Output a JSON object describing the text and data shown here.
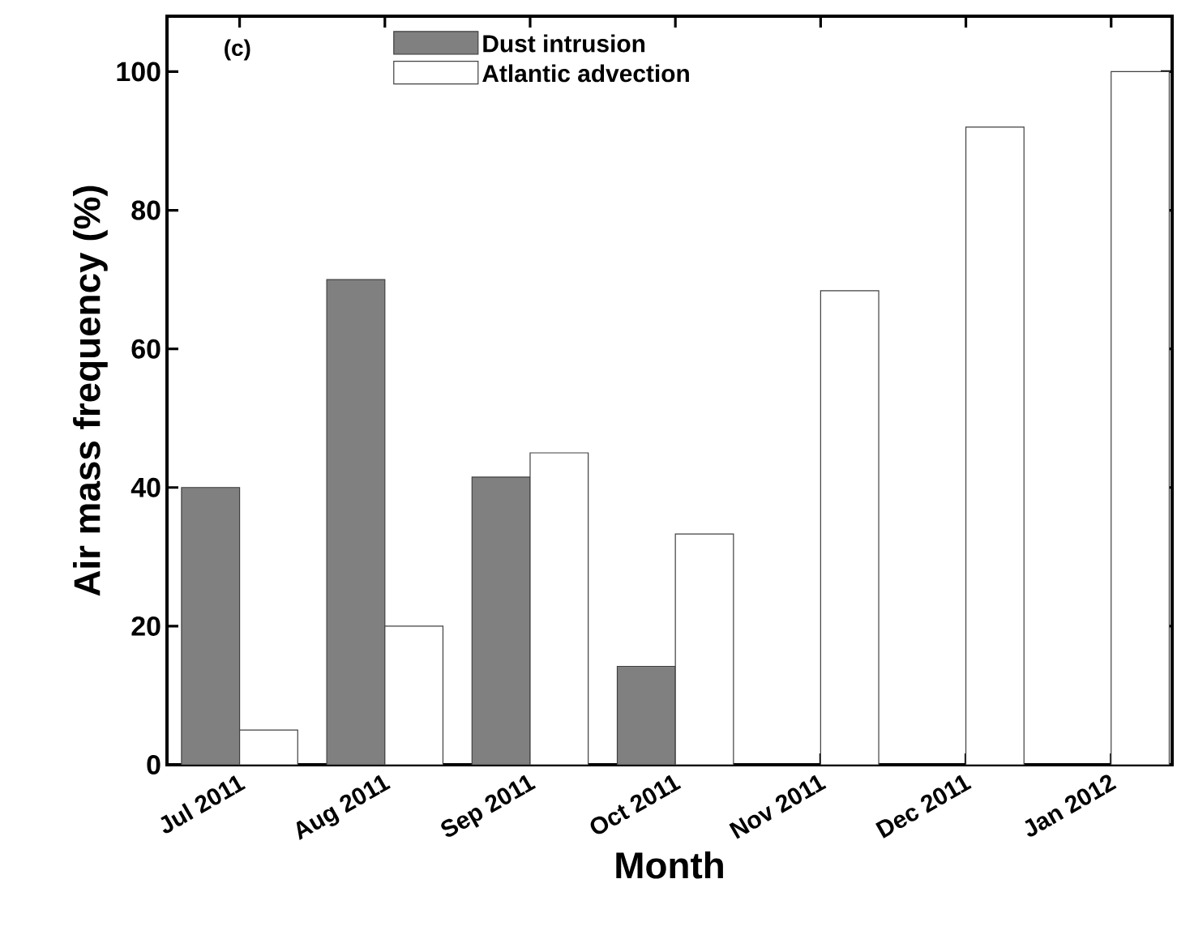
{
  "chart_data": {
    "type": "bar",
    "xlabel": "Month",
    "ylabel": "Air mass frequency (%)",
    "categories": [
      "Jul 2011",
      "Aug 2011",
      "Sep 2011",
      "Oct 2011",
      "Nov 2011",
      "Dec 2011",
      "Jan 2012"
    ],
    "series": [
      {
        "name": "Dust intrusion",
        "color": "#808080",
        "values": [
          40,
          70,
          41.5,
          14.2,
          null,
          null,
          null
        ]
      },
      {
        "name": "Atlantic advection",
        "color": "#ffffff",
        "values": [
          5,
          20,
          45,
          33.3,
          68.4,
          92,
          100
        ]
      }
    ],
    "ylim": [
      0,
      108
    ],
    "yticks": [
      0,
      20,
      40,
      60,
      80,
      100
    ],
    "annotations": [
      "(c)"
    ],
    "legend": "top",
    "grid": false
  }
}
